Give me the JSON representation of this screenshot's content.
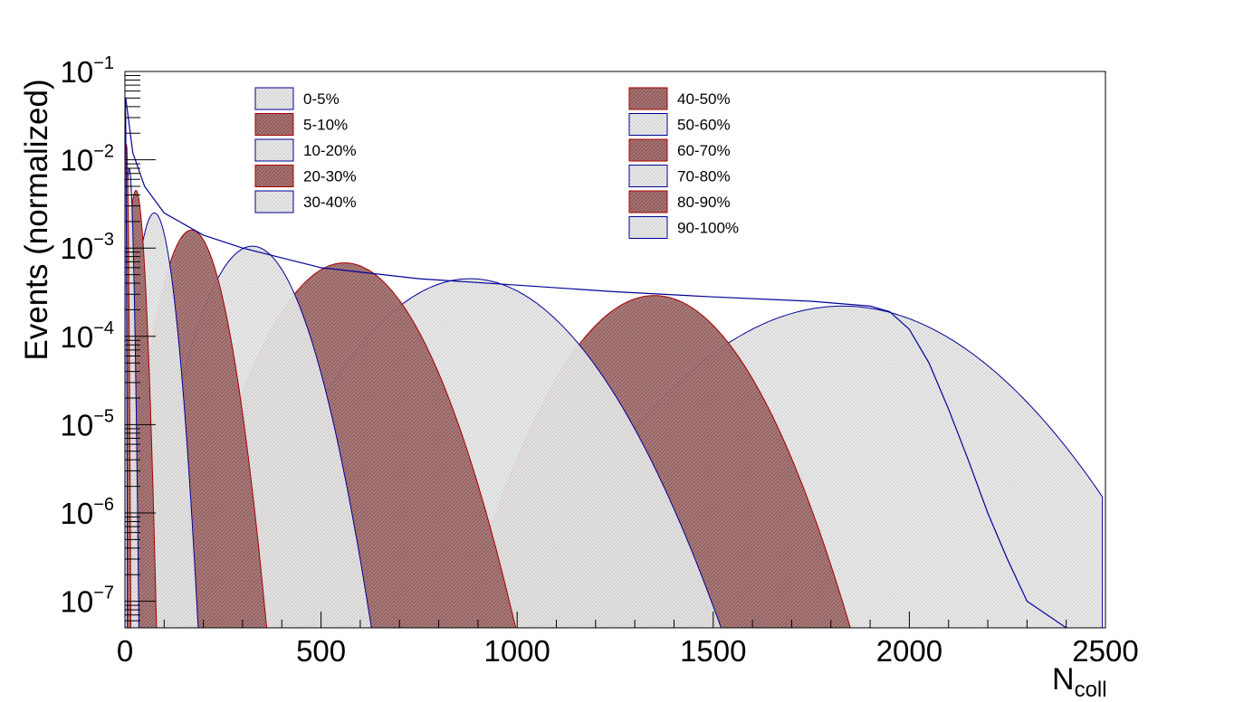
{
  "chart_data": {
    "type": "area",
    "title": "",
    "xlabel": "N",
    "xlabel_sub": "coll",
    "ylabel": "Events (normalized)",
    "xlim": [
      0,
      2500
    ],
    "ylim": [
      5e-08,
      0.1
    ],
    "yscale": "log",
    "grid": false,
    "legend_position": "top",
    "x_ticks": [
      {
        "value": 0,
        "label": "0"
      },
      {
        "value": 500,
        "label": "500"
      },
      {
        "value": 1000,
        "label": "1000"
      },
      {
        "value": 1500,
        "label": "1500"
      },
      {
        "value": 2000,
        "label": "2000"
      },
      {
        "value": 2500,
        "label": "2500"
      }
    ],
    "y_ticks": [
      {
        "value": 1e-07,
        "base": "10",
        "exp": "−7"
      },
      {
        "value": 1e-06,
        "base": "10",
        "exp": "−6"
      },
      {
        "value": 1e-05,
        "base": "10",
        "exp": "−5"
      },
      {
        "value": 0.0001,
        "base": "10",
        "exp": "−4"
      },
      {
        "value": 0.001,
        "base": "10",
        "exp": "−3"
      },
      {
        "value": 0.01,
        "base": "10",
        "exp": "−2"
      },
      {
        "value": 0.1,
        "base": "10",
        "exp": "−1"
      }
    ],
    "total_envelope": {
      "name": "",
      "x": [
        2,
        20,
        50,
        100,
        200,
        300,
        500,
        750,
        1000,
        1250,
        1500,
        1750,
        1900,
        1950,
        2000,
        2050,
        2100,
        2150,
        2200,
        2250,
        2300,
        2400
      ],
      "y": [
        0.05,
        0.012,
        0.005,
        0.0025,
        0.0014,
        0.001,
        0.0006,
        0.00045,
        0.00038,
        0.00032,
        0.00028,
        0.00025,
        0.00022,
        0.00019,
        0.00012,
        5e-05,
        1.5e-05,
        4e-06,
        1e-06,
        3e-07,
        1e-07,
        5e-08
      ]
    },
    "series": [
      {
        "name": "0-5%",
        "style": "light",
        "mean": 1830,
        "width": 210,
        "peak": 0.00022
      },
      {
        "name": "5-10%",
        "style": "dark",
        "mean": 1350,
        "width": 120,
        "peak": 0.00029
      },
      {
        "name": "10-20%",
        "style": "light",
        "mean": 880,
        "width": 150,
        "peak": 0.00045
      },
      {
        "name": "20-30%",
        "style": "dark",
        "mean": 560,
        "width": 100,
        "peak": 0.00068
      },
      {
        "name": "30-40%",
        "style": "light",
        "mean": 325,
        "width": 68,
        "peak": 0.00105
      },
      {
        "name": "40-50%",
        "style": "dark",
        "mean": 170,
        "width": 42,
        "peak": 0.0016
      },
      {
        "name": "50-60%",
        "style": "light",
        "mean": 75,
        "width": 24,
        "peak": 0.0025
      },
      {
        "name": "60-70%",
        "style": "dark",
        "mean": 28,
        "width": 11,
        "peak": 0.0045
      },
      {
        "name": "70-80%",
        "style": "light",
        "mean": 11,
        "width": 5,
        "peak": 0.008
      },
      {
        "name": "80-90%",
        "style": "dark",
        "mean": 4,
        "width": 2.2,
        "peak": 0.015
      },
      {
        "name": "90-100%",
        "style": "light",
        "mean": 1,
        "width": 1,
        "peak": 0.05
      }
    ],
    "legend": [
      [
        "0-5%",
        "5-10%",
        "10-20%",
        "20-30%",
        "30-40%"
      ],
      [
        "40-50%",
        "50-60%",
        "60-70%",
        "70-80%",
        "80-90%",
        "90-100%"
      ]
    ],
    "colors": {
      "light_fill": "#e6e6e6",
      "dark_fill": "#a57272",
      "edge": "#000099",
      "dark_edge": "#aa0000",
      "axis": "#000000"
    }
  }
}
